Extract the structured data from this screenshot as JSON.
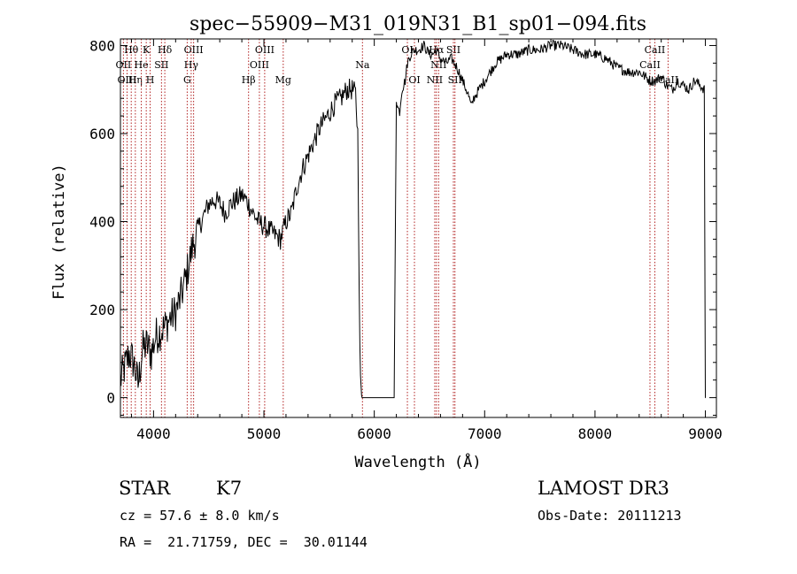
{
  "chart_data": {
    "type": "line",
    "title": "spec−55909−M31_019N31_B1_sp01−094.fits",
    "xlabel": "Wavelength (Å)",
    "ylabel": "Flux (relative)",
    "xlim": [
      3700,
      9100
    ],
    "ylim": [
      -45,
      815
    ],
    "xticks": [
      4000,
      5000,
      6000,
      7000,
      8000,
      9000
    ],
    "yticks": [
      0,
      200,
      400,
      600,
      800
    ],
    "line_color": "#000000",
    "marker_color": "#b22222",
    "series": [
      {
        "name": "spectrum",
        "x": [
          3700,
          3740,
          3780,
          3820,
          3860,
          3900,
          3940,
          3980,
          4020,
          4060,
          4100,
          4150,
          4200,
          4250,
          4300,
          4350,
          4400,
          4450,
          4500,
          4550,
          4600,
          4650,
          4700,
          4750,
          4800,
          4850,
          4900,
          4950,
          5000,
          5050,
          5100,
          5150,
          5200,
          5250,
          5300,
          5350,
          5400,
          5450,
          5500,
          5550,
          5600,
          5650,
          5700,
          5750,
          5800,
          5830,
          5850,
          5870,
          5880,
          5890,
          5900,
          5920,
          5950,
          6000,
          6100,
          6150,
          6180,
          6200,
          6210,
          6230,
          6250,
          6280,
          6300,
          6330,
          6360,
          6400,
          6450,
          6500,
          6530,
          6560,
          6600,
          6650,
          6700,
          6750,
          6800,
          6850,
          6880,
          6900,
          6950,
          7000,
          7050,
          7100,
          7200,
          7300,
          7400,
          7500,
          7600,
          7700,
          7800,
          7900,
          8000,
          8100,
          8200,
          8300,
          8400,
          8500,
          8550,
          8600,
          8650,
          8700,
          8750,
          8800,
          8850,
          8900,
          8950,
          8990,
          9000,
          9001
        ],
        "y": [
          40,
          70,
          100,
          80,
          30,
          110,
          120,
          100,
          140,
          150,
          160,
          180,
          195,
          230,
          280,
          340,
          380,
          410,
          440,
          450,
          440,
          420,
          440,
          450,
          460,
          445,
          420,
          400,
          390,
          380,
          370,
          360,
          400,
          420,
          480,
          520,
          550,
          580,
          610,
          630,
          650,
          670,
          680,
          700,
          700,
          690,
          600,
          100,
          10,
          0,
          0,
          0,
          0,
          0,
          0,
          0,
          0,
          680,
          660,
          650,
          700,
          720,
          760,
          780,
          790,
          790,
          800,
          780,
          780,
          790,
          770,
          760,
          770,
          750,
          720,
          690,
          660,
          680,
          700,
          720,
          740,
          760,
          780,
          780,
          790,
          790,
          800,
          800,
          790,
          780,
          780,
          770,
          750,
          740,
          740,
          720,
          720,
          730,
          710,
          700,
          720,
          710,
          700,
          720,
          710,
          700,
          0,
          0
        ]
      }
    ],
    "line_markers": [
      {
        "label": "Hθ",
        "wavelength": 3798,
        "row": 0
      },
      {
        "label": "OII",
        "wavelength": 3727,
        "row": 1
      },
      {
        "label": "OIII",
        "wavelength": 3760,
        "row": 2
      },
      {
        "label": "Hη",
        "wavelength": 3835,
        "row": 2
      },
      {
        "label": "He",
        "wavelength": 3889,
        "row": 1
      },
      {
        "label": "K",
        "wavelength": 3934,
        "row": 0
      },
      {
        "label": "SII",
        "wavelength": 4072,
        "row": 1
      },
      {
        "label": "H",
        "wavelength": 3969,
        "row": 2
      },
      {
        "label": "Hδ",
        "wavelength": 4102,
        "row": 0
      },
      {
        "label": "OIII",
        "wavelength": 4363,
        "row": 0
      },
      {
        "label": "Hγ",
        "wavelength": 4341,
        "row": 1
      },
      {
        "label": "G",
        "wavelength": 4305,
        "row": 2
      },
      {
        "label": "Hβ",
        "wavelength": 4861,
        "row": 2
      },
      {
        "label": "OIII",
        "wavelength": 4959,
        "row": 1
      },
      {
        "label": "OIII",
        "wavelength": 5007,
        "row": 0
      },
      {
        "label": "Mg",
        "wavelength": 5175,
        "row": 2
      },
      {
        "label": "Na",
        "wavelength": 5893,
        "row": 1
      },
      {
        "label": "OI",
        "wavelength": 6300,
        "row": 0
      },
      {
        "label": "OI",
        "wavelength": 6364,
        "row": 2
      },
      {
        "label": "Hα",
        "wavelength": 6563,
        "row": 0
      },
      {
        "label": "NII",
        "wavelength": 6548,
        "row": 2
      },
      {
        "label": "NII",
        "wavelength": 6583,
        "row": 1
      },
      {
        "label": "SII",
        "wavelength": 6717,
        "row": 0
      },
      {
        "label": "SII",
        "wavelength": 6731,
        "row": 2
      },
      {
        "label": "CaII",
        "wavelength": 8542,
        "row": 0
      },
      {
        "label": "CaII",
        "wavelength": 8498,
        "row": 1
      },
      {
        "label": "CaII",
        "wavelength": 8662,
        "row": 2
      }
    ]
  },
  "info": {
    "class_label": "STAR",
    "subclass": "K7",
    "survey": "LAMOST DR3",
    "redshift": "cz = 57.6 ± 8.0 km/s",
    "obs_date": "Obs-Date: 20111213",
    "coords": "RA =  21.71759, DEC =  30.01144"
  }
}
